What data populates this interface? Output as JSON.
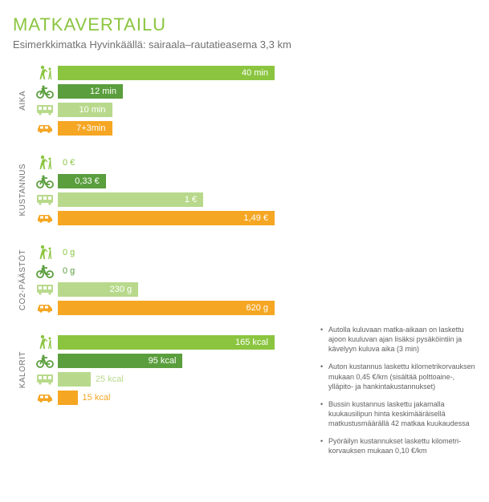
{
  "title": "MATKAVERTAILU",
  "subtitle": "Esimerkkimatka Hyvinkäällä: sairaala–rautatieasema 3,3 km",
  "colors": {
    "walk": "#8bc540",
    "bike": "#5a9e3d",
    "bus": "#b8d98c",
    "car": "#f5a623",
    "label": "#707070"
  },
  "modes": [
    "walk",
    "bike",
    "bus",
    "car"
  ],
  "categories": [
    {
      "key": "aika",
      "label": "AIKA",
      "max": 40,
      "bars": [
        {
          "mode": "walk",
          "value": 40,
          "label": "40 min",
          "labelPos": "in"
        },
        {
          "mode": "bike",
          "value": 12,
          "label": "12 min",
          "labelPos": "in"
        },
        {
          "mode": "bus",
          "value": 10,
          "label": "10 min",
          "labelPos": "in"
        },
        {
          "mode": "car",
          "value": 10,
          "label": "7+3min",
          "labelPos": "in"
        }
      ]
    },
    {
      "key": "kustannus",
      "label": "KUSTANNUS",
      "max": 1.49,
      "bars": [
        {
          "mode": "walk",
          "value": 0,
          "label": "0 €",
          "labelPos": "out"
        },
        {
          "mode": "bike",
          "value": 0.33,
          "label": "0,33 €",
          "labelPos": "in"
        },
        {
          "mode": "bus",
          "value": 1.0,
          "label": "1 €",
          "labelPos": "in"
        },
        {
          "mode": "car",
          "value": 1.49,
          "label": "1,49 €",
          "labelPos": "in"
        }
      ]
    },
    {
      "key": "co2",
      "label": "CO2-PÄÄSTÖT",
      "max": 620,
      "bars": [
        {
          "mode": "walk",
          "value": 0,
          "label": "0 g",
          "labelPos": "out"
        },
        {
          "mode": "bike",
          "value": 0,
          "label": "0 g",
          "labelPos": "out"
        },
        {
          "mode": "bus",
          "value": 230,
          "label": "230 g",
          "labelPos": "in"
        },
        {
          "mode": "car",
          "value": 620,
          "label": "620 g",
          "labelPos": "in"
        }
      ]
    },
    {
      "key": "kalorit",
      "label": "KALORIT",
      "max": 165,
      "bars": [
        {
          "mode": "walk",
          "value": 165,
          "label": "165 kcal",
          "labelPos": "in"
        },
        {
          "mode": "bike",
          "value": 95,
          "label": "95 kcal",
          "labelPos": "in"
        },
        {
          "mode": "bus",
          "value": 25,
          "label": "25 kcal",
          "labelPos": "out"
        },
        {
          "mode": "car",
          "value": 15,
          "label": "15 kcal",
          "labelPos": "out"
        }
      ]
    }
  ],
  "barFullWidthPx": 270,
  "notes": [
    "Autolla kuluvaan matka-aikaan on laskettu ajoon kuuluvan ajan lisäksi pysäköintiin ja kävelyyn kuluva aika (3 min)",
    "Auton kustannus laskettu kilometrikorvauksen mukaan 0,45 €/km (sisältää polttoaine-, ylläpito- ja hankintakustannukset)",
    "Bussin kustannus laskettu jakamalla kuukausilipun hinta keskimääräisellä matkustusmäärällä 42 matkaa kuukaudessa",
    "Pyöräilyn kustannukset laskettu kilometri­korvauksen mukaan 0,10 €/km"
  ]
}
